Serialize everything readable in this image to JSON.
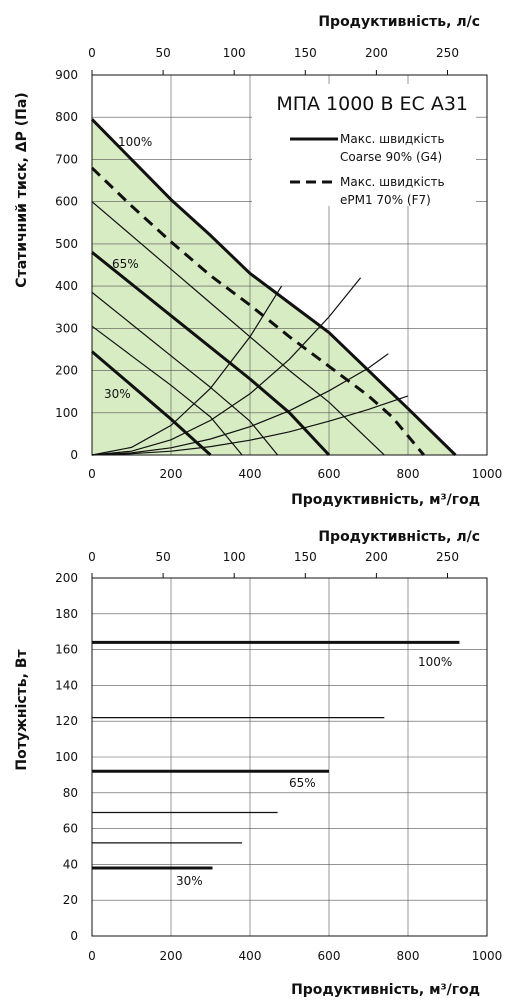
{
  "chart_data": [
    {
      "type": "line",
      "title": "МПА 1000 В ЕС А31",
      "xlabel": "Продуктивність, м³/год",
      "x2label": "Продуктивність, л/с",
      "ylabel": "Статичний тиск, ΔP (Па)",
      "xlim": [
        0,
        1000
      ],
      "ylim": [
        0,
        900
      ],
      "x2lim": [
        0,
        277.8
      ],
      "xticks": [
        "0",
        "200",
        "400",
        "600",
        "800",
        "1000"
      ],
      "x2ticks": [
        "0",
        "50",
        "100",
        "150",
        "200",
        "250"
      ],
      "yticks": [
        "0",
        "100",
        "200",
        "300",
        "400",
        "500",
        "600",
        "700",
        "800",
        "900"
      ],
      "grid": true,
      "legend_position": "top-right",
      "legend": [
        {
          "label_line1": "Макс. швидкість",
          "label_line2": "Coarse 90% (G4)",
          "style": "solid"
        },
        {
          "label_line1": "Макс. швидкість",
          "label_line2": "ePM1 70% (F7)",
          "style": "dashed"
        }
      ],
      "series": [
        {
          "name": "100%",
          "style": "thick",
          "x": [
            0,
            100,
            200,
            300,
            400,
            500,
            600,
            700,
            800,
            920
          ],
          "y": [
            795,
            700,
            605,
            520,
            430,
            360,
            290,
            200,
            110,
            0
          ]
        },
        {
          "style": "thin",
          "x": [
            0,
            100,
            200,
            300,
            400,
            500,
            600,
            740
          ],
          "y": [
            600,
            520,
            440,
            360,
            280,
            200,
            125,
            0
          ]
        },
        {
          "name": "65%",
          "style": "thick",
          "x": [
            0,
            100,
            200,
            300,
            400,
            500,
            600
          ],
          "y": [
            480,
            405,
            330,
            255,
            180,
            100,
            0
          ]
        },
        {
          "style": "thin",
          "x": [
            0,
            100,
            200,
            300,
            400,
            470
          ],
          "y": [
            385,
            310,
            235,
            160,
            80,
            0
          ]
        },
        {
          "style": "thin",
          "x": [
            0,
            100,
            200,
            300,
            380
          ],
          "y": [
            305,
            235,
            165,
            90,
            0
          ]
        },
        {
          "name": "30%",
          "style": "thick",
          "x": [
            0,
            100,
            200,
            300
          ],
          "y": [
            245,
            165,
            85,
            0
          ]
        }
      ],
      "dashed_series": {
        "x": [
          0,
          100,
          200,
          300,
          400,
          500,
          600,
          700,
          760,
          840
        ],
        "y": [
          680,
          590,
          505,
          425,
          355,
          280,
          210,
          140,
          90,
          0
        ]
      },
      "system_curves": [
        {
          "x": [
            0,
            100,
            200,
            300,
            400,
            480
          ],
          "y": [
            0,
            18,
            70,
            158,
            280,
            400
          ]
        },
        {
          "x": [
            0,
            100,
            200,
            300,
            400,
            500,
            600,
            680
          ],
          "y": [
            0,
            9,
            36,
            82,
            145,
            227,
            327,
            420
          ]
        },
        {
          "x": [
            0,
            100,
            200,
            300,
            400,
            500,
            600,
            700,
            750
          ],
          "y": [
            0,
            5,
            17,
            38,
            67,
            105,
            152,
            206,
            240
          ]
        },
        {
          "x": [
            0,
            100,
            200,
            300,
            400,
            500,
            600,
            700,
            800
          ],
          "y": [
            0,
            3,
            9,
            20,
            35,
            55,
            80,
            108,
            140
          ]
        }
      ],
      "fill_region": {
        "x": [
          0,
          100,
          200,
          300,
          400,
          500,
          600,
          700,
          800,
          920
        ],
        "y": [
          795,
          700,
          605,
          520,
          430,
          360,
          290,
          200,
          110,
          0
        ],
        "color": "#d8ecc4"
      },
      "line_color": "#111111"
    },
    {
      "type": "line",
      "xlabel": "Продуктивність, м³/год",
      "x2label": "Продуктивність, л/с",
      "ylabel": "Потужність, Вт",
      "xlim": [
        0,
        1000
      ],
      "ylim": [
        0,
        200
      ],
      "xticks": [
        "0",
        "200",
        "400",
        "600",
        "800",
        "1000"
      ],
      "x2ticks": [
        "0",
        "50",
        "100",
        "150",
        "200",
        "250"
      ],
      "yticks": [
        "0",
        "20",
        "40",
        "60",
        "80",
        "100",
        "120",
        "140",
        "160",
        "180",
        "200"
      ],
      "grid": true,
      "series": [
        {
          "name": "100%",
          "style": "thick",
          "x": [
            0,
            930
          ],
          "y": [
            164,
            164
          ]
        },
        {
          "style": "thin",
          "x": [
            0,
            740
          ],
          "y": [
            122,
            122
          ]
        },
        {
          "name": "65%",
          "style": "thick",
          "x": [
            0,
            600
          ],
          "y": [
            92,
            92
          ]
        },
        {
          "style": "thin",
          "x": [
            0,
            470
          ],
          "y": [
            69,
            69
          ]
        },
        {
          "style": "thin",
          "x": [
            0,
            380
          ],
          "y": [
            52,
            52
          ]
        },
        {
          "name": "30%",
          "style": "thick",
          "x": [
            0,
            305
          ],
          "y": [
            38,
            38
          ]
        }
      ]
    }
  ]
}
